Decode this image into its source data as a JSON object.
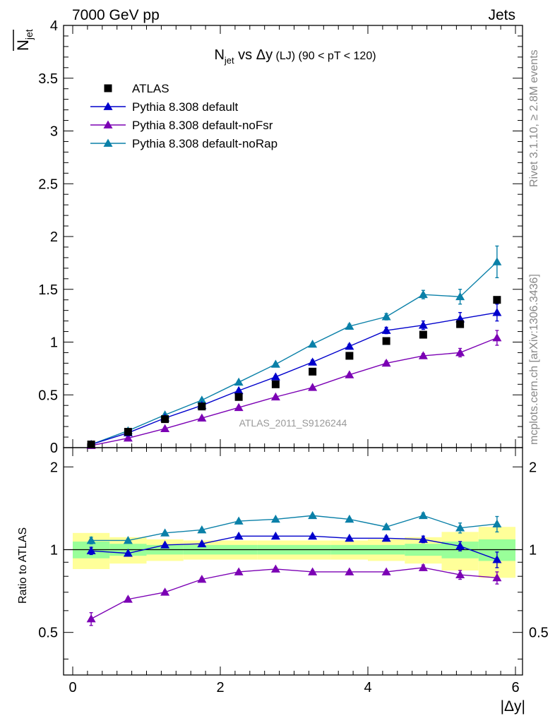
{
  "header": {
    "energy_label": "7000 GeV pp",
    "process_label": "Jets"
  },
  "side": {
    "rivet_label": "Rivet 3.1.10, ≥ 2.8M events",
    "mcplots_label": "mcplots.cern.ch [arXiv:1306.3436]"
  },
  "colors": {
    "atlas": "#000000",
    "default": "#0000cc",
    "noFsr": "#7b00b4",
    "noRap": "#0a80a8",
    "band_inner": "#99ff99",
    "band_outer": "#ffff99"
  },
  "chart_data": [
    {
      "type": "line",
      "title": "N_jet vs Δy (LJ) (90 < pT < 120)",
      "title_parts": {
        "base": "N",
        "sub": "jet",
        "mid": " vs Δy",
        "small": " (LJ)",
        "range": " (90 < pT < 120)"
      },
      "ylabel": "N_jet",
      "ylabel_parts": {
        "base": "N",
        "sub": "jet"
      },
      "xlabel": "",
      "xlim": [
        -0.15,
        6.1
      ],
      "ylim": [
        0,
        4
      ],
      "yticks": [
        0,
        0.5,
        1,
        1.5,
        2,
        2.5,
        3,
        3.5,
        4
      ],
      "ytick_labels": [
        "0",
        "0.5",
        "1",
        "1.5",
        "2",
        "2.5",
        "3",
        "3.5",
        "4"
      ],
      "watermark": "ATLAS_2011_S9126244",
      "legend_position": "top-left",
      "x": [
        0.25,
        0.75,
        1.25,
        1.75,
        2.25,
        2.75,
        3.25,
        3.75,
        4.25,
        4.75,
        5.25,
        5.75
      ],
      "series": [
        {
          "name": "ATLAS",
          "marker": "square",
          "values": [
            0.03,
            0.15,
            0.27,
            0.39,
            0.48,
            0.6,
            0.72,
            0.87,
            1.01,
            1.07,
            1.17,
            1.4
          ],
          "errors": [
            0,
            0,
            0,
            0,
            0,
            0,
            0,
            0,
            0,
            0,
            0,
            0
          ]
        },
        {
          "name": "Pythia 8.308 default",
          "marker": "triangle",
          "values": [
            0.03,
            0.14,
            0.28,
            0.4,
            0.54,
            0.67,
            0.81,
            0.96,
            1.11,
            1.16,
            1.22,
            1.28
          ],
          "errors": [
            0,
            0,
            0,
            0.01,
            0.01,
            0.01,
            0.02,
            0.02,
            0.03,
            0.04,
            0.06,
            0.08
          ]
        },
        {
          "name": "Pythia 8.308 default-noFsr",
          "marker": "triangle",
          "values": [
            0.02,
            0.09,
            0.18,
            0.28,
            0.38,
            0.48,
            0.57,
            0.69,
            0.8,
            0.87,
            0.9,
            1.04
          ],
          "errors": [
            0,
            0,
            0,
            0.01,
            0.01,
            0.01,
            0.01,
            0.01,
            0.02,
            0.02,
            0.04,
            0.07
          ]
        },
        {
          "name": "Pythia 8.308 default-noRap",
          "marker": "triangle",
          "values": [
            0.03,
            0.16,
            0.31,
            0.45,
            0.62,
            0.79,
            0.98,
            1.15,
            1.24,
            1.45,
            1.43,
            1.76
          ],
          "errors": [
            0,
            0,
            0,
            0.01,
            0.01,
            0.01,
            0.01,
            0.02,
            0.03,
            0.04,
            0.07,
            0.15
          ]
        }
      ]
    },
    {
      "type": "line",
      "title": "",
      "ylabel": "Ratio to ATLAS",
      "xlabel": "|Δy|",
      "xlim": [
        -0.15,
        6.1
      ],
      "ylim": [
        0.35,
        2.35
      ],
      "log_scale_y": true,
      "xticks": [
        0,
        2,
        4,
        6
      ],
      "xtick_labels": [
        "0",
        "2",
        "4",
        "6"
      ],
      "yticks": [
        0.5,
        1,
        2
      ],
      "ytick_labels": [
        "0.5",
        "1",
        "2"
      ],
      "x": [
        0.25,
        0.75,
        1.25,
        1.75,
        2.25,
        2.75,
        3.25,
        3.75,
        4.25,
        4.75,
        5.25,
        5.75
      ],
      "bands": {
        "edges": [
          0,
          0.5,
          1,
          1.5,
          2,
          2.5,
          3,
          3.5,
          4,
          4.5,
          5,
          5.5,
          6
        ],
        "inner_low": [
          0.93,
          0.95,
          0.96,
          0.96,
          0.96,
          0.96,
          0.96,
          0.96,
          0.96,
          0.95,
          0.93,
          0.91
        ],
        "inner_high": [
          1.07,
          1.05,
          1.04,
          1.04,
          1.04,
          1.04,
          1.04,
          1.04,
          1.04,
          1.05,
          1.07,
          1.09
        ],
        "outer_low": [
          0.85,
          0.89,
          0.91,
          0.92,
          0.92,
          0.92,
          0.92,
          0.92,
          0.91,
          0.89,
          0.84,
          0.79
        ],
        "outer_high": [
          1.15,
          1.11,
          1.09,
          1.08,
          1.08,
          1.08,
          1.08,
          1.08,
          1.09,
          1.11,
          1.16,
          1.21
        ]
      },
      "series": [
        {
          "name": "Pythia 8.308 default",
          "values": [
            0.99,
            0.97,
            1.04,
            1.05,
            1.12,
            1.12,
            1.12,
            1.1,
            1.1,
            1.09,
            1.03,
            0.92
          ],
          "errors": [
            0.03,
            0.01,
            0.01,
            0.01,
            0.01,
            0.01,
            0.01,
            0.01,
            0.02,
            0.03,
            0.04,
            0.06
          ]
        },
        {
          "name": "Pythia 8.308 default-noFsr",
          "values": [
            0.56,
            0.66,
            0.7,
            0.78,
            0.83,
            0.85,
            0.83,
            0.83,
            0.83,
            0.86,
            0.81,
            0.79
          ],
          "errors": [
            0.03,
            0.01,
            0.01,
            0.01,
            0.01,
            0.01,
            0.01,
            0.01,
            0.01,
            0.02,
            0.03,
            0.04
          ]
        },
        {
          "name": "Pythia 8.308 default-noRap",
          "values": [
            1.08,
            1.08,
            1.15,
            1.18,
            1.27,
            1.29,
            1.33,
            1.29,
            1.21,
            1.33,
            1.2,
            1.24
          ],
          "errors": [
            0.03,
            0.01,
            0.01,
            0.01,
            0.01,
            0.01,
            0.01,
            0.01,
            0.02,
            0.03,
            0.05,
            0.08
          ]
        }
      ]
    }
  ]
}
